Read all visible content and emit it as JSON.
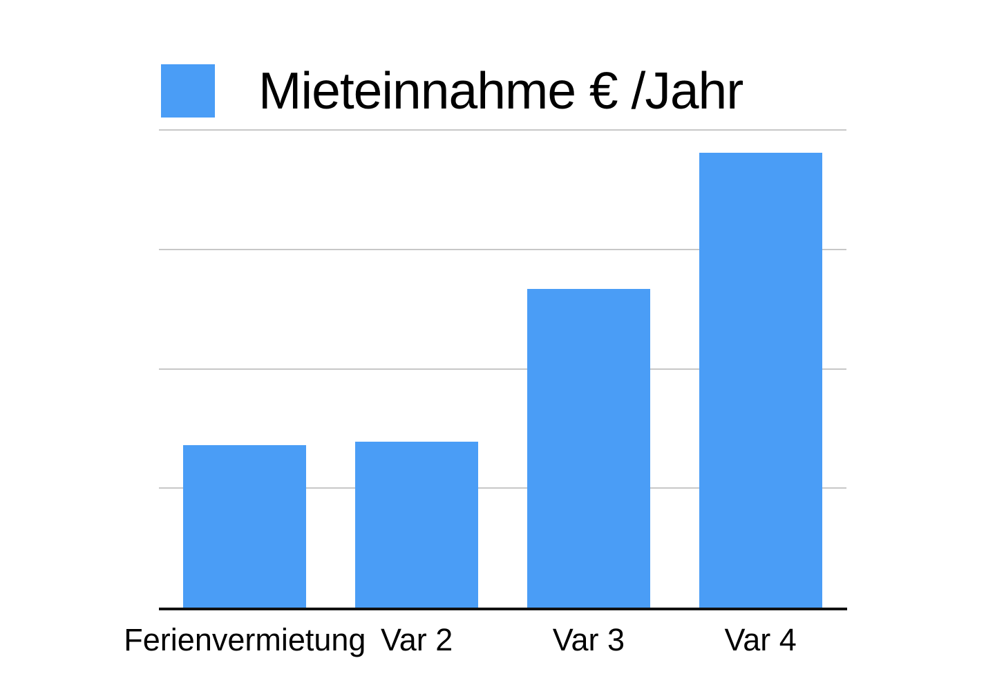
{
  "chart_data": {
    "type": "bar",
    "title": "Mieteinnahme € /Jahr",
    "categories": [
      "Ferienvermietung",
      "Var 2",
      "Var 3",
      "Var 4"
    ],
    "values": [
      1.36,
      1.39,
      2.67,
      3.81
    ],
    "value_scale": "relative units estimated from gridlines; one gridline step = 1 unit (no numeric y-axis tick labels are shown in the chart)",
    "ylim": [
      0,
      4
    ],
    "gridline_units": [
      1,
      2,
      3,
      4
    ],
    "xlabel": "",
    "ylabel": "",
    "grid": true,
    "legend": {
      "position": "top-left",
      "entries": [
        {
          "label": "Mieteinnahme € /Jahr",
          "color": "#4A9DF6"
        }
      ]
    },
    "colors": {
      "bar": "#4A9DF6",
      "gridline": "#C7C7C7",
      "axis": "#111111",
      "text": "#000000",
      "background": "#FFFFFF"
    }
  }
}
